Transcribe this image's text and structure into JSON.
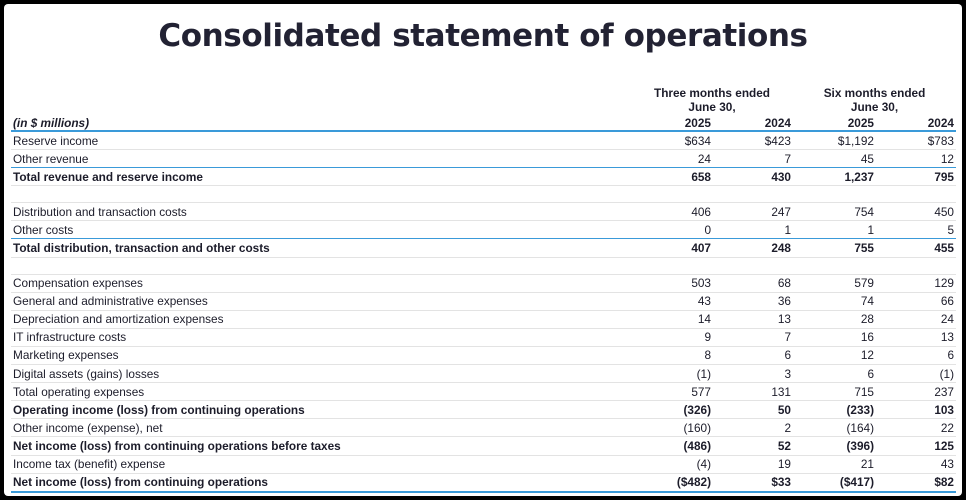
{
  "title": "Consolidated statement of operations",
  "header": {
    "three_months": "Three months ended",
    "three_months_date": "June 30,",
    "six_months": "Six months ended",
    "six_months_date": "June 30,",
    "units": "(in $ millions)",
    "years": [
      "2025",
      "2024",
      "2025",
      "2024"
    ]
  },
  "rows": [
    {
      "label": "Reserve income",
      "values": [
        "$634",
        "$423",
        "$1,192",
        "$783"
      ],
      "style": ""
    },
    {
      "label": "Other revenue",
      "values": [
        "24",
        "7",
        "45",
        "12"
      ],
      "style": "sub"
    },
    {
      "label": "Total revenue and reserve income",
      "values": [
        "658",
        "430",
        "1,237",
        "795"
      ],
      "style": "total"
    },
    {
      "label": "",
      "values": [
        "",
        "",
        "",
        ""
      ],
      "style": "blank"
    },
    {
      "label": "Distribution and transaction costs",
      "values": [
        "406",
        "247",
        "754",
        "450"
      ],
      "style": ""
    },
    {
      "label": "Other costs",
      "values": [
        "0",
        "1",
        "1",
        "5"
      ],
      "style": "sub"
    },
    {
      "label": "Total distribution, transaction and other costs",
      "values": [
        "407",
        "248",
        "755",
        "455"
      ],
      "style": "total"
    },
    {
      "label": "",
      "values": [
        "",
        "",
        "",
        ""
      ],
      "style": "blank"
    },
    {
      "label": "Compensation expenses",
      "values": [
        "503",
        "68",
        "579",
        "129"
      ],
      "style": ""
    },
    {
      "label": "General and administrative expenses",
      "values": [
        "43",
        "36",
        "74",
        "66"
      ],
      "style": ""
    },
    {
      "label": "Depreciation and amortization expenses",
      "values": [
        "14",
        "13",
        "28",
        "24"
      ],
      "style": ""
    },
    {
      "label": "IT infrastructure costs",
      "values": [
        "9",
        "7",
        "16",
        "13"
      ],
      "style": ""
    },
    {
      "label": "Marketing expenses",
      "values": [
        "8",
        "6",
        "12",
        "6"
      ],
      "style": ""
    },
    {
      "label": "Digital assets (gains) losses",
      "values": [
        "(1)",
        "3",
        "6",
        "(1)"
      ],
      "style": ""
    },
    {
      "label": "Total operating expenses",
      "values": [
        "577",
        "131",
        "715",
        "237"
      ],
      "style": ""
    },
    {
      "label": "Operating income (loss) from continuing operations",
      "values": [
        "(326)",
        "50",
        "(233)",
        "103"
      ],
      "style": "total"
    },
    {
      "label": "Other income (expense), net",
      "values": [
        "(160)",
        "2",
        "(164)",
        "22"
      ],
      "style": ""
    },
    {
      "label": "Net income (loss) from continuing operations before taxes",
      "values": [
        "(486)",
        "52",
        "(396)",
        "125"
      ],
      "style": "total"
    },
    {
      "label": "Income tax (benefit) expense",
      "values": [
        "(4)",
        "19",
        "21",
        "43"
      ],
      "style": ""
    },
    {
      "label": "Net income (loss) from continuing operations",
      "values": [
        "($482)",
        "$33",
        "($417)",
        "$82"
      ],
      "style": "total last"
    }
  ]
}
